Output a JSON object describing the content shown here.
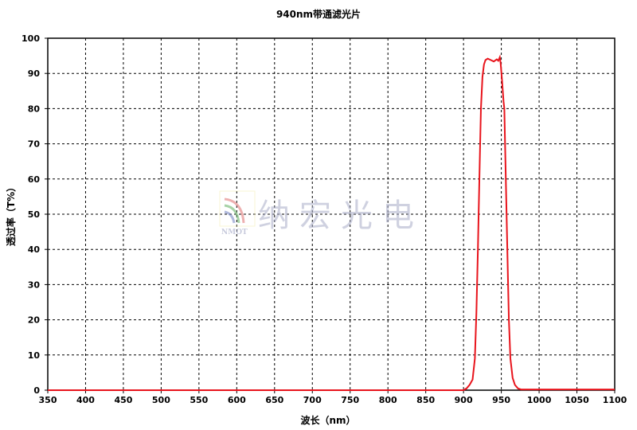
{
  "chart_data": {
    "type": "line",
    "title": "940nm带通滤光片",
    "xlabel": "波长（nm）",
    "ylabel": "透过率（T%）",
    "xlim": [
      350,
      1100
    ],
    "ylim": [
      0,
      100
    ],
    "xticks": [
      350,
      400,
      450,
      500,
      550,
      600,
      650,
      700,
      750,
      800,
      850,
      900,
      950,
      1000,
      1050,
      1100
    ],
    "yticks": [
      0,
      10,
      20,
      30,
      40,
      50,
      60,
      70,
      80,
      90,
      100
    ],
    "grid": true,
    "grid_style": "dashed",
    "line_color": "#e8141c",
    "series": [
      {
        "x": [
          350,
          900,
          904,
          908,
          912,
          915,
          917,
          919,
          920,
          922,
          923,
          925,
          927,
          929,
          932,
          936,
          940,
          944,
          946,
          948,
          949,
          951,
          953,
          954,
          955,
          957,
          959,
          960,
          962,
          965,
          968,
          972,
          976,
          1100
        ],
        "y": [
          0,
          0,
          0.5,
          1.5,
          3,
          9,
          22,
          40,
          50,
          70,
          80,
          89,
          92.5,
          93.8,
          94.2,
          93.8,
          93.4,
          94,
          93.6,
          94.6,
          93,
          88,
          82,
          80,
          70,
          50,
          30,
          20,
          9,
          3.5,
          1.5,
          0.5,
          0.2,
          0.2
        ]
      }
    ]
  },
  "watermark": {
    "text": "纳宏光电",
    "logo_text": "NMOT"
  }
}
